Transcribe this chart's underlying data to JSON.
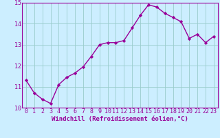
{
  "x": [
    0,
    1,
    2,
    3,
    4,
    5,
    6,
    7,
    8,
    9,
    10,
    11,
    12,
    13,
    14,
    15,
    16,
    17,
    18,
    19,
    20,
    21,
    22,
    23
  ],
  "y": [
    11.3,
    10.7,
    10.4,
    10.2,
    11.1,
    11.45,
    11.65,
    11.95,
    12.45,
    13.0,
    13.1,
    13.1,
    13.2,
    13.8,
    14.4,
    14.9,
    14.8,
    14.5,
    14.3,
    14.1,
    13.3,
    13.5,
    13.1,
    13.4
  ],
  "line_color": "#990099",
  "marker": "D",
  "marker_size": 2.2,
  "bg_color": "#cceeff",
  "grid_color": "#99cccc",
  "xlabel": "Windchill (Refroidissement éolien,°C)",
  "ylim": [
    10,
    15
  ],
  "xlim_min": -0.5,
  "xlim_max": 23.5,
  "yticks": [
    10,
    11,
    12,
    13,
    14,
    15
  ],
  "xticks": [
    0,
    1,
    2,
    3,
    4,
    5,
    6,
    7,
    8,
    9,
    10,
    11,
    12,
    13,
    14,
    15,
    16,
    17,
    18,
    19,
    20,
    21,
    22,
    23
  ],
  "xlabel_fontsize": 6.5,
  "tick_fontsize": 6.0,
  "line_width": 1.0
}
